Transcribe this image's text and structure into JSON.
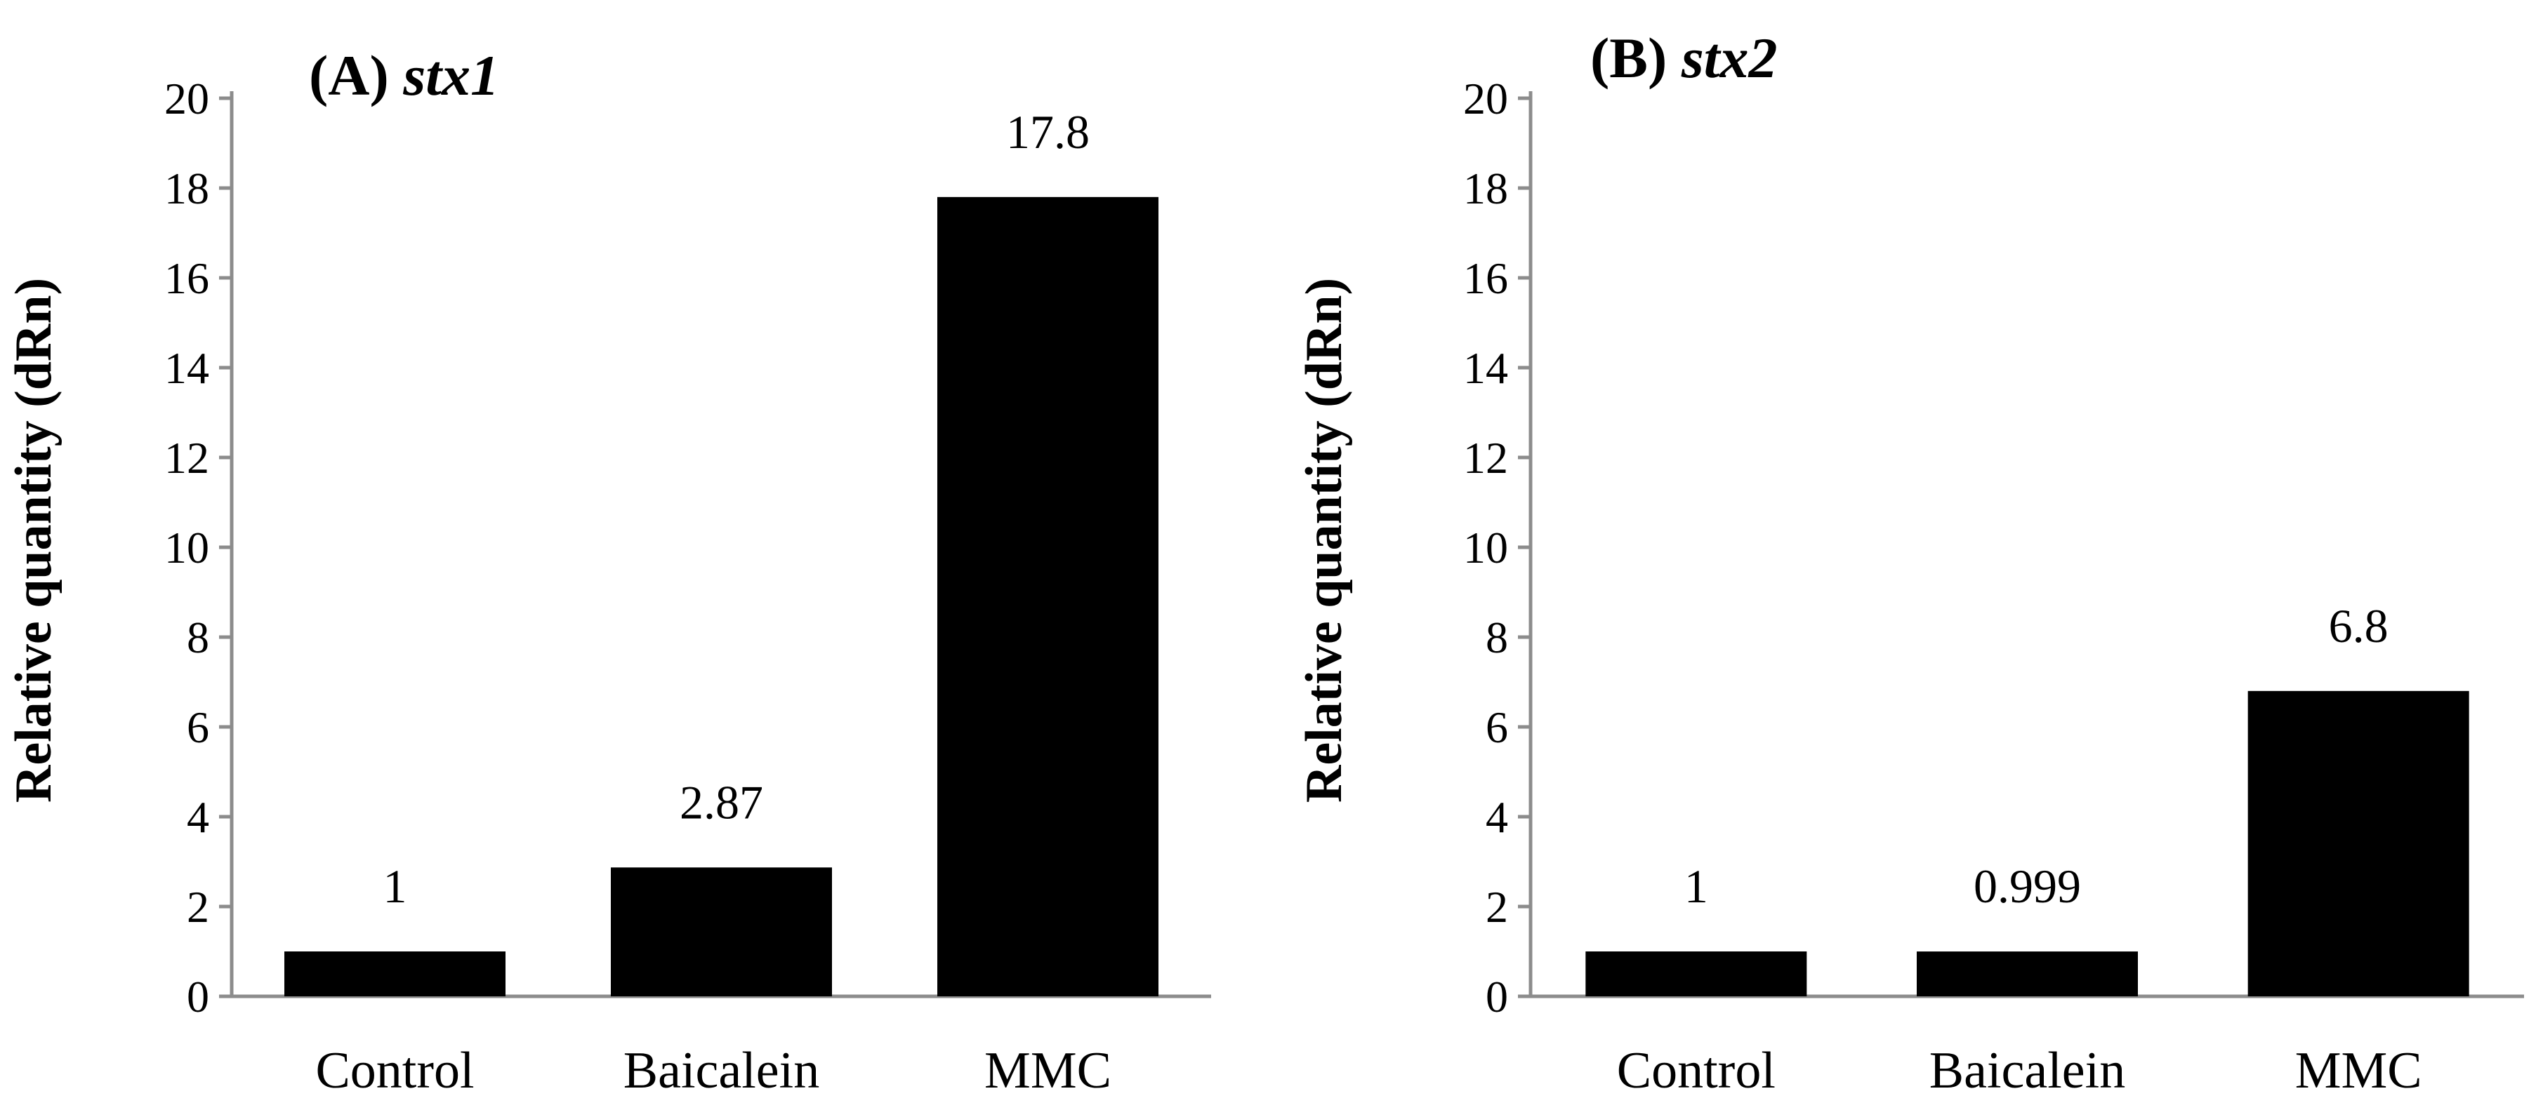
{
  "chart_data": [
    {
      "type": "bar",
      "title_prefix": "(A) ",
      "title_gene": "stx1",
      "ylabel": "Relative quantity (dRn)",
      "xlabel": "",
      "categories": [
        "Control",
        "Baicalein",
        "MMC"
      ],
      "values": [
        1,
        2.87,
        17.8
      ],
      "data_labels": [
        "1",
        "2.87",
        "17.8"
      ],
      "ylim": [
        0,
        20
      ],
      "yticks": [
        0,
        2,
        4,
        6,
        8,
        10,
        12,
        14,
        16,
        18,
        20
      ],
      "grid": false,
      "legend": "none",
      "bar_color": "#000000"
    },
    {
      "type": "bar",
      "title_prefix": "(B) ",
      "title_gene": "stx2",
      "ylabel": "Relative quantity (dRn)",
      "xlabel": "",
      "categories": [
        "Control",
        "Baicalein",
        "MMC"
      ],
      "values": [
        1,
        0.999,
        6.8
      ],
      "data_labels": [
        "1",
        "0.999",
        "6.8"
      ],
      "ylim": [
        0,
        20
      ],
      "yticks": [
        0,
        2,
        4,
        6,
        8,
        10,
        12,
        14,
        16,
        18,
        20
      ],
      "grid": false,
      "legend": "none",
      "bar_color": "#000000"
    }
  ]
}
